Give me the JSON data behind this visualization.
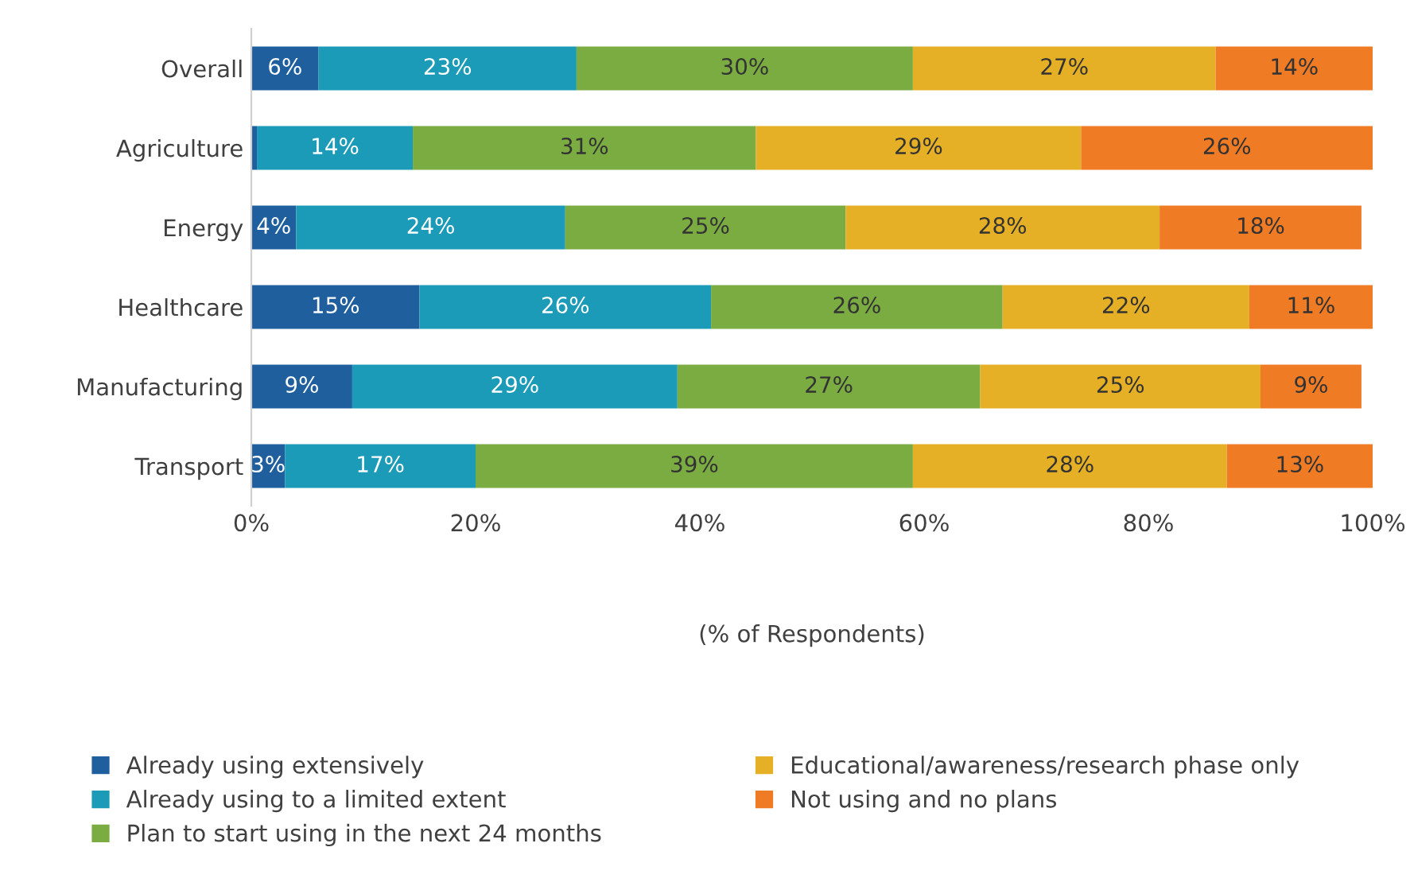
{
  "chart_data": {
    "type": "bar",
    "orientation": "horizontal",
    "stacked": true,
    "categories": [
      "Overall",
      "Agriculture",
      "Energy",
      "Healthcare",
      "Manufacturing",
      "Transport"
    ],
    "xlabel": "(% of Respondents)",
    "xlim": [
      0,
      100
    ],
    "xticks": [
      {
        "value": 0,
        "label": "0%"
      },
      {
        "value": 20,
        "label": "20%"
      },
      {
        "value": 40,
        "label": "40%"
      },
      {
        "value": 60,
        "label": "60%"
      },
      {
        "value": 80,
        "label": "80%"
      },
      {
        "value": 100,
        "label": "100%"
      }
    ],
    "grid": false,
    "legend": "bottom",
    "series": [
      {
        "name": "Already using extensively",
        "color": "#1f5f9e",
        "values": [
          6,
          0.5,
          4,
          15,
          9,
          3
        ],
        "value_labels": [
          "6%",
          null,
          "4%",
          "15%",
          "9%",
          "3%"
        ]
      },
      {
        "name": "Already using to a limited extent",
        "color": "#1b9bb8",
        "values": [
          23,
          13.9,
          24,
          26,
          29,
          17
        ],
        "value_labels": [
          "23%",
          "14%",
          "24%",
          "26%",
          "29%",
          "17%"
        ]
      },
      {
        "name": "Plan to start using in the next 24 months",
        "color": "#7bac42",
        "values": [
          30,
          30.6,
          25,
          26,
          27,
          39
        ],
        "value_labels": [
          "30%",
          "31%",
          "25%",
          "26%",
          "27%",
          "39%"
        ]
      },
      {
        "name": "Educational/awareness/research phase only",
        "color": "#e5b025",
        "values": [
          27,
          29,
          28,
          22,
          25,
          28
        ],
        "value_labels": [
          "27%",
          "29%",
          "28%",
          "22%",
          "25%",
          "28%"
        ]
      },
      {
        "name": "Not using and no plans",
        "color": "#ef7b25",
        "values": [
          14,
          26,
          18,
          11,
          9,
          13
        ],
        "value_labels": [
          "14%",
          "26%",
          "18%",
          "11%",
          "9%",
          "13%"
        ]
      }
    ]
  }
}
